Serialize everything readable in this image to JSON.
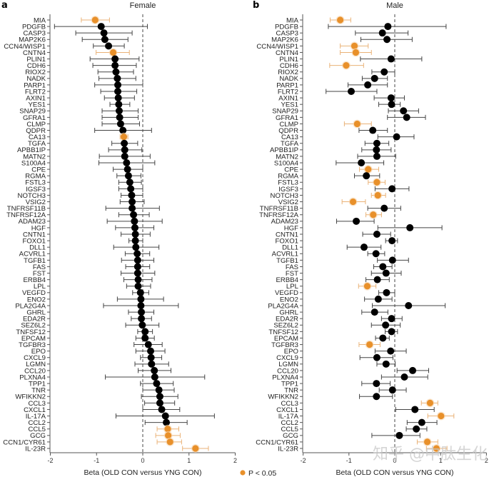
{
  "figure": {
    "legend_label": "P < 0.05",
    "sig_color": "#e8902a",
    "nonsig_color": "#000000",
    "watermark": "知乎 @中肽生化"
  },
  "chart_data": [
    {
      "type": "scatter",
      "subtype": "forest-plot",
      "panel_letter": "a",
      "title": "Female",
      "xlabel": "Beta (OLD CON versus YNG CON)",
      "ylabel": "",
      "xlim": [
        -2,
        2
      ],
      "xticks": [
        -2,
        -1,
        0,
        1,
        2
      ],
      "xtick_labels": [
        "-2",
        "-1",
        "0",
        "1",
        "2"
      ],
      "reference_line": 0,
      "grid": false,
      "legend": "bottom-center",
      "categories": [
        "MIA",
        "PDGFB",
        "CASP3",
        "MAP2K6",
        "CCN4/WISP1",
        "CNTN4",
        "PLIN1",
        "CDH6",
        "RIOX2",
        "NADK",
        "PARP1",
        "FLRT2",
        "AXIN1",
        "YES1",
        "SNAP29",
        "GFRA1",
        "CLMP",
        "QDPR",
        "CA13",
        "TGFA",
        "APBB1IP",
        "MATN2",
        "S100A4",
        "CPE",
        "RGMA",
        "FSTL3",
        "IGSF3",
        "NOTCH3",
        "VSIG2",
        "TNFRSF11B",
        "TNFRSF12A",
        "ADAM23",
        "HGF",
        "CNTN1",
        "FOXO1",
        "DLL1",
        "ACVRL1",
        "TGFB1",
        "FAS",
        "FST",
        "ERBB4",
        "LPL",
        "VEGFD",
        "ENO2",
        "PLA2G4A",
        "GHRL",
        "EDA2R",
        "SEZ6L2",
        "TNFSF12",
        "EPCAM",
        "TGFBR3",
        "EPO",
        "CXCL9",
        "LGMN",
        "CCL20",
        "PLXNA4",
        "TPP1",
        "TNR",
        "WFIKKN2",
        "CCL3",
        "CXCL1",
        "IL-17A",
        "CCL2",
        "CCL5",
        "GCG",
        "CCN1/CYR61",
        "IL-23R"
      ],
      "beta": [
        -1.03,
        -0.9,
        -0.84,
        -0.82,
        -0.74,
        -0.64,
        -0.6,
        -0.6,
        -0.58,
        -0.55,
        -0.54,
        -0.54,
        -0.53,
        -0.52,
        -0.51,
        -0.5,
        -0.48,
        -0.43,
        -0.41,
        -0.4,
        -0.39,
        -0.39,
        -0.35,
        -0.33,
        -0.31,
        -0.28,
        -0.26,
        -0.24,
        -0.23,
        -0.23,
        -0.2,
        -0.18,
        -0.17,
        -0.16,
        -0.16,
        -0.15,
        -0.12,
        -0.11,
        -0.11,
        -0.11,
        -0.1,
        -0.1,
        -0.05,
        -0.04,
        -0.04,
        -0.03,
        -0.03,
        -0.01,
        0.05,
        0.05,
        0.12,
        0.17,
        0.18,
        0.19,
        0.25,
        0.26,
        0.3,
        0.35,
        0.37,
        0.37,
        0.41,
        0.49,
        0.51,
        0.54,
        0.55,
        0.59,
        1.14
      ],
      "ci_low": [
        -1.33,
        -1.91,
        -1.45,
        -1.31,
        -1.07,
        -1.01,
        -1.14,
        -1.08,
        -0.97,
        -0.95,
        -1.04,
        -0.91,
        -0.83,
        -0.71,
        -0.88,
        -0.88,
        -0.88,
        -1.04,
        -0.49,
        -0.67,
        -0.74,
        -0.94,
        -0.95,
        -0.64,
        -0.56,
        -0.52,
        -0.52,
        -0.47,
        -0.49,
        -0.8,
        -0.52,
        -0.77,
        -0.59,
        -0.47,
        -0.3,
        -0.63,
        -0.38,
        -0.46,
        -0.37,
        -0.47,
        -0.41,
        -0.35,
        -0.22,
        -0.55,
        -0.85,
        -0.31,
        -0.25,
        -0.37,
        -0.11,
        -0.15,
        -0.19,
        -0.15,
        -0.05,
        -0.17,
        -0.1,
        -0.81,
        -0.05,
        0.0,
        -0.03,
        0.04,
        0.0,
        -0.58,
        0.05,
        0.31,
        0.28,
        0.31,
        0.86
      ],
      "ci_high": [
        -0.72,
        0.1,
        -0.23,
        -0.32,
        -0.4,
        -0.29,
        -0.08,
        -0.14,
        -0.2,
        -0.15,
        0.0,
        -0.13,
        -0.18,
        -0.28,
        -0.1,
        -0.1,
        -0.07,
        0.19,
        -0.32,
        -0.11,
        -0.02,
        0.16,
        0.26,
        0.0,
        -0.04,
        -0.03,
        0.0,
        0.0,
        0.03,
        0.36,
        0.14,
        0.42,
        0.24,
        0.16,
        0.0,
        0.35,
        0.15,
        0.24,
        0.15,
        0.26,
        0.2,
        0.17,
        0.13,
        0.45,
        0.77,
        0.24,
        0.19,
        0.35,
        0.21,
        0.25,
        0.42,
        0.48,
        0.41,
        0.56,
        0.61,
        1.34,
        0.66,
        0.68,
        0.76,
        0.69,
        0.8,
        1.55,
        0.96,
        0.78,
        0.81,
        0.84,
        1.42
      ],
      "significant": [
        true,
        false,
        false,
        false,
        false,
        true,
        false,
        false,
        false,
        false,
        false,
        false,
        false,
        false,
        false,
        false,
        false,
        false,
        true,
        false,
        false,
        false,
        false,
        false,
        false,
        false,
        false,
        false,
        false,
        false,
        false,
        false,
        false,
        false,
        false,
        false,
        false,
        false,
        false,
        false,
        false,
        false,
        false,
        false,
        false,
        false,
        false,
        false,
        false,
        false,
        false,
        false,
        false,
        false,
        false,
        false,
        false,
        false,
        false,
        false,
        false,
        false,
        false,
        true,
        true,
        true,
        true
      ]
    },
    {
      "type": "scatter",
      "subtype": "forest-plot",
      "panel_letter": "b",
      "title": "Male",
      "xlabel": "Beta (OLD CON versus YNG CON)",
      "ylabel": "",
      "xlim": [
        -2,
        2
      ],
      "xticks": [
        -2,
        -1,
        0,
        1,
        2
      ],
      "xtick_labels": [
        "-2",
        "-1",
        "0",
        "1",
        "2"
      ],
      "reference_line": 0,
      "grid": false,
      "categories": [
        "MIA",
        "PDGFB",
        "CASP3",
        "MAP2K6",
        "CCN4/WISP1",
        "CNTN4",
        "PLIN1",
        "CDH6",
        "RIOX2",
        "NADK",
        "PARP1",
        "FLRT2",
        "AXIN1",
        "YES1",
        "SNAP29",
        "GFRA1",
        "CLMP",
        "QDPR",
        "CA13",
        "TGFA",
        "APBB1IP",
        "MATN2",
        "S100A4",
        "CPE",
        "RGMA",
        "FSTL3",
        "IGSF3",
        "NOTCH3",
        "VSIG2",
        "TNFRSF11B",
        "TNFRSF12A",
        "ADAM23",
        "HGF",
        "CNTN1",
        "FOXO1",
        "DLL1",
        "ACVRL1",
        "TGFB1",
        "FAS",
        "FST",
        "ERBB4",
        "LPL",
        "VEGFD",
        "ENO2",
        "PLA2G4A",
        "GHRL",
        "EDA2R",
        "SEZ6L2",
        "TNFSF12",
        "EPCAM",
        "TGFBR3",
        "EPO",
        "CXCL9",
        "LGMN",
        "CCL20",
        "PLXNA4",
        "TPP1",
        "TNR",
        "WFIKKN2",
        "CCL3",
        "CXCL1",
        "IL-17A",
        "CCL2",
        "CCL5",
        "GCG",
        "CCN1/CYR61",
        "IL-23R"
      ],
      "beta": [
        -1.19,
        -0.15,
        -0.27,
        -0.17,
        -0.88,
        -0.85,
        -0.08,
        -1.06,
        -0.23,
        -0.44,
        -0.59,
        -0.95,
        -0.08,
        -0.07,
        0.19,
        0.26,
        -0.82,
        -0.48,
        0.04,
        -0.39,
        -0.4,
        -0.39,
        -0.73,
        -0.58,
        -0.62,
        -0.39,
        -0.06,
        -0.37,
        -0.91,
        -0.23,
        -0.47,
        -0.84,
        0.33,
        -0.39,
        -0.06,
        -0.67,
        -0.41,
        -0.05,
        -0.26,
        -0.19,
        -0.38,
        -0.6,
        -0.18,
        -0.36,
        0.3,
        -0.44,
        -0.07,
        -0.2,
        -0.07,
        -0.26,
        -0.55,
        -0.09,
        -0.39,
        -0.19,
        0.39,
        0.21,
        -0.4,
        -0.05,
        -0.4,
        0.77,
        0.44,
        1.01,
        0.59,
        0.47,
        0.1,
        0.71,
        0.91
      ],
      "ci_low": [
        -1.41,
        -1.45,
        -0.86,
        -0.74,
        -1.19,
        -1.19,
        -0.75,
        -1.42,
        -0.5,
        -0.71,
        -1.02,
        -1.5,
        -0.45,
        -0.35,
        -0.14,
        -0.16,
        -1.1,
        -0.78,
        -0.37,
        -0.65,
        -0.72,
        -0.81,
        -1.28,
        -0.77,
        -0.88,
        -0.58,
        -0.43,
        -0.51,
        -1.15,
        -0.59,
        -0.63,
        -1.27,
        -0.37,
        -0.7,
        -0.2,
        -1.04,
        -0.59,
        -0.38,
        -0.46,
        -0.51,
        -0.63,
        -0.79,
        -0.35,
        -0.66,
        -0.49,
        -0.72,
        -0.29,
        -0.51,
        -0.21,
        -0.42,
        -0.78,
        -0.43,
        -0.76,
        -0.39,
        0.05,
        -0.29,
        -0.72,
        -0.34,
        -0.77,
        0.58,
        0.02,
        0.72,
        0.27,
        0.25,
        -0.5,
        0.49,
        0.69
      ],
      "ci_high": [
        -0.96,
        1.12,
        0.29,
        0.38,
        -0.58,
        -0.51,
        0.59,
        -0.68,
        0.0,
        -0.16,
        -0.16,
        -0.39,
        0.21,
        0.12,
        0.52,
        0.67,
        -0.51,
        -0.16,
        0.42,
        -0.13,
        -0.08,
        0.02,
        -0.24,
        -0.35,
        -0.33,
        -0.21,
        0.31,
        -0.2,
        -0.64,
        0.13,
        -0.29,
        -0.45,
        1.03,
        -0.09,
        0.06,
        -0.3,
        -0.22,
        0.3,
        -0.06,
        0.14,
        -0.12,
        -0.41,
        0.0,
        -0.06,
        1.1,
        -0.15,
        0.16,
        0.12,
        0.06,
        -0.12,
        -0.32,
        0.25,
        -0.04,
        0.01,
        0.74,
        0.72,
        -0.1,
        0.25,
        -0.05,
        0.94,
        0.86,
        1.29,
        0.92,
        0.7,
        0.55,
        0.94,
        1.14
      ],
      "significant": [
        true,
        false,
        false,
        false,
        true,
        true,
        false,
        true,
        false,
        false,
        false,
        false,
        false,
        false,
        false,
        false,
        true,
        false,
        false,
        false,
        false,
        false,
        false,
        true,
        false,
        true,
        false,
        true,
        true,
        false,
        true,
        false,
        false,
        false,
        false,
        false,
        false,
        false,
        false,
        false,
        false,
        true,
        false,
        false,
        false,
        false,
        false,
        false,
        false,
        false,
        true,
        false,
        false,
        false,
        false,
        false,
        false,
        false,
        false,
        true,
        false,
        true,
        false,
        false,
        false,
        true,
        true
      ]
    }
  ]
}
